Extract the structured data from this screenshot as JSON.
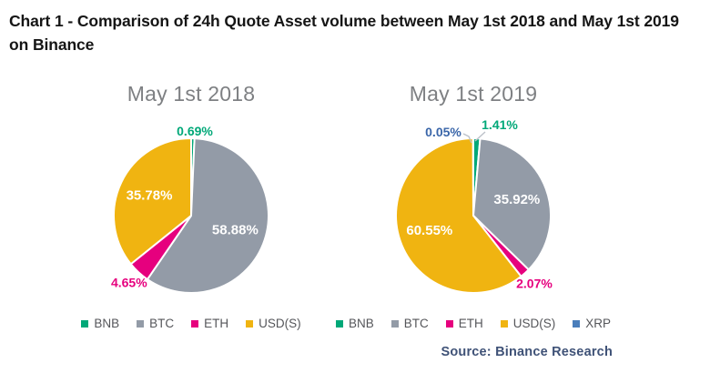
{
  "header": {
    "title": "Chart 1 - Comparison of 24h Quote Asset volume between May 1st 2018 and May 1st 2019 on Binance"
  },
  "source": {
    "label": "Source: Binance Research"
  },
  "colors": {
    "bnb_green": "#00A878",
    "btc_gray": "#939BA7",
    "eth_pink": "#E6007E",
    "usds_yellow": "#F0B411",
    "xrp_blue": "#4A7EBB",
    "xrp_label_text": "#3A66A9",
    "inside_label_text": "#FFFFFF",
    "leader_line": "#BCC1C9",
    "chart_title_text": "#7E8083",
    "legend_text": "#55565A",
    "source_text": "#3F5277",
    "page_title_text": "#151515"
  },
  "chart_data": [
    {
      "type": "pie",
      "title": "May 1st 2018",
      "labels": [
        "BNB",
        "BTC",
        "ETH",
        "USD(S)"
      ],
      "values": [
        0.69,
        58.88,
        4.65,
        35.78
      ],
      "value_labels": [
        "0.69%",
        "58.88%",
        "4.65%",
        "35.78%"
      ],
      "colors": [
        "#00A878",
        "#939BA7",
        "#E6007E",
        "#F0B411"
      ],
      "label_text_colors": [
        "#00A878",
        "#FFFFFF",
        "#E6007E",
        "#FFFFFF"
      ],
      "legend": [
        "BNB",
        "BTC",
        "ETH",
        "USD(S)"
      ],
      "legend_position": "bottom",
      "start_angle": "12-oclock",
      "direction": "clockwise"
    },
    {
      "type": "pie",
      "title": "May 1st 2019",
      "labels": [
        "BNB",
        "BTC",
        "ETH",
        "USD(S)",
        "XRP"
      ],
      "values": [
        1.41,
        35.92,
        2.07,
        60.55,
        0.05
      ],
      "value_labels": [
        "1.41%",
        "35.92%",
        "2.07%",
        "60.55%",
        "0.05%"
      ],
      "colors": [
        "#00A878",
        "#939BA7",
        "#E6007E",
        "#F0B411",
        "#4A7EBB"
      ],
      "label_text_colors": [
        "#00A878",
        "#FFFFFF",
        "#E6007E",
        "#FFFFFF",
        "#3A66A9"
      ],
      "legend": [
        "BNB",
        "BTC",
        "ETH",
        "USD(S)",
        "XRP"
      ],
      "legend_position": "bottom",
      "start_angle": "12-oclock",
      "direction": "clockwise"
    }
  ]
}
